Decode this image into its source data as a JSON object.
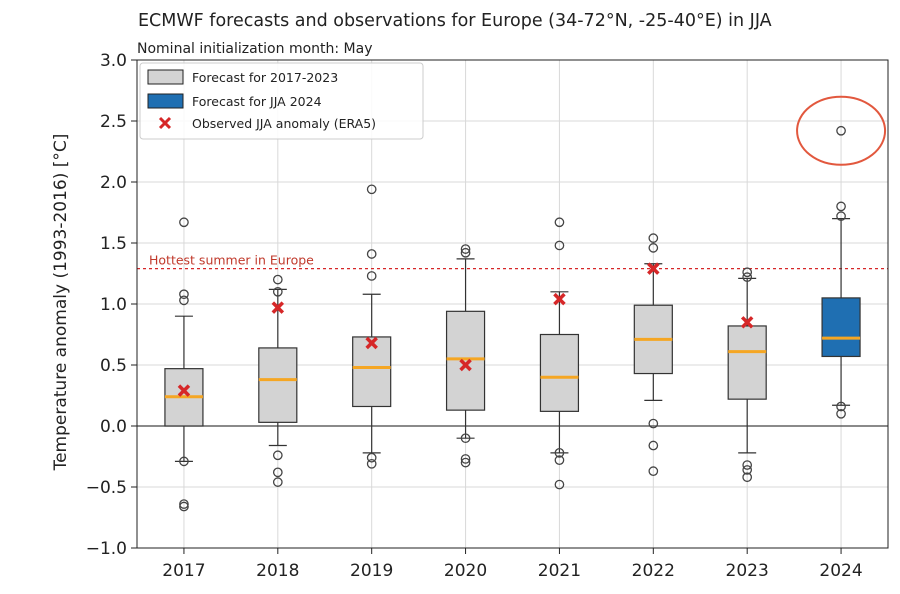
{
  "chart_data": {
    "type": "box",
    "title": "ECMWF forecasts and observations for Europe (34-72°N, -25-40°E) in JJA",
    "subtitle": "Nominal initialization month: May",
    "xlabel": "",
    "ylabel": "Temperature anomaly (1993-2016) [°C]",
    "ylim": [
      -1.0,
      3.0
    ],
    "yticks": [
      -1.0,
      -0.5,
      0.0,
      0.5,
      1.0,
      1.5,
      2.0,
      2.5,
      3.0
    ],
    "ytick_labels": [
      "−1.0",
      "−0.5",
      "0.0",
      "0.5",
      "1.0",
      "1.5",
      "2.0",
      "2.5",
      "3.0"
    ],
    "grid": true,
    "legend_position": "top-left",
    "legend": [
      {
        "label": "Forecast for 2017-2023",
        "kind": "box",
        "color": "#d3d3d3"
      },
      {
        "label": "Forecast for JJA 2024",
        "kind": "box",
        "color": "#1f6fb2"
      },
      {
        "label": "Observed JJA anomaly (ERA5)",
        "kind": "cross",
        "color": "#d62728"
      }
    ],
    "reference_line": {
      "label": "Hottest summer in Europe",
      "value": 1.29,
      "color": "#d62728"
    },
    "highlight": {
      "label_year": "2024",
      "value": 2.42,
      "color": "#e2583e"
    },
    "series": [
      {
        "year": "2017",
        "whislo": -0.29,
        "q1": 0.0,
        "med": 0.24,
        "q3": 0.47,
        "whishi": 0.9,
        "fliers": [
          1.67,
          1.08,
          1.03,
          -0.29,
          -0.64,
          -0.66
        ],
        "observed": 0.29,
        "fill": "#d3d3d3"
      },
      {
        "year": "2018",
        "whislo": -0.16,
        "q1": 0.03,
        "med": 0.38,
        "q3": 0.64,
        "whishi": 1.12,
        "fliers": [
          1.2,
          1.1,
          -0.24,
          -0.38,
          -0.46
        ],
        "observed": 0.97,
        "fill": "#d3d3d3"
      },
      {
        "year": "2019",
        "whislo": -0.22,
        "q1": 0.16,
        "med": 0.48,
        "q3": 0.73,
        "whishi": 1.08,
        "fliers": [
          1.94,
          1.41,
          1.23,
          -0.26,
          -0.31
        ],
        "observed": 0.68,
        "fill": "#d3d3d3"
      },
      {
        "year": "2020",
        "whislo": -0.1,
        "q1": 0.13,
        "med": 0.55,
        "q3": 0.94,
        "whishi": 1.37,
        "fliers": [
          1.45,
          1.42,
          -0.1,
          -0.27,
          -0.3
        ],
        "observed": 0.5,
        "fill": "#d3d3d3"
      },
      {
        "year": "2021",
        "whislo": -0.22,
        "q1": 0.12,
        "med": 0.4,
        "q3": 0.75,
        "whishi": 1.1,
        "fliers": [
          1.67,
          1.48,
          -0.22,
          -0.28,
          -0.48
        ],
        "observed": 1.04,
        "fill": "#d3d3d3"
      },
      {
        "year": "2022",
        "whislo": 0.21,
        "q1": 0.43,
        "med": 0.71,
        "q3": 0.99,
        "whishi": 1.33,
        "fliers": [
          1.54,
          1.46,
          0.02,
          -0.16,
          -0.37
        ],
        "observed": 1.29,
        "fill": "#d3d3d3"
      },
      {
        "year": "2023",
        "whislo": -0.22,
        "q1": 0.22,
        "med": 0.61,
        "q3": 0.82,
        "whishi": 1.21,
        "fliers": [
          1.26,
          1.22,
          -0.32,
          -0.36,
          -0.42
        ],
        "observed": 0.85,
        "fill": "#d3d3d3"
      },
      {
        "year": "2024",
        "whislo": 0.17,
        "q1": 0.57,
        "med": 0.72,
        "q3": 1.05,
        "whishi": 1.7,
        "fliers": [
          2.42,
          1.8,
          1.72,
          0.16,
          0.1
        ],
        "observed": null,
        "fill": "#1f6fb2"
      }
    ],
    "colors": {
      "median": "#f5a623",
      "axis": "#222222",
      "grid": "#d9d9d9",
      "zero_line": "#444444"
    }
  }
}
